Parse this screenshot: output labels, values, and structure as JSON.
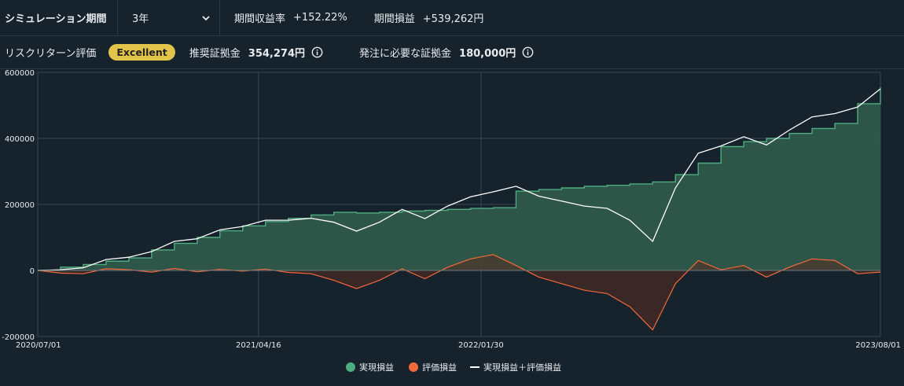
{
  "header": {
    "period_label": "シミュレーション期間",
    "period_value": "3年",
    "return_rate_label": "期間収益率",
    "return_rate_value": "+152.22%",
    "pnl_label": "期間損益",
    "pnl_value": "+539,262円"
  },
  "risk": {
    "label": "リスクリターン評価",
    "badge": "Excellent",
    "recommended_margin_label": "推奨証拠金",
    "recommended_margin_value": "354,274円",
    "required_margin_label": "発注に必要な証拠金",
    "required_margin_value": "180,000円"
  },
  "colors": {
    "realized": "#4fae80",
    "unrealized": "#f26a3c",
    "total": "#ffffff",
    "badge": "#e3c44a"
  },
  "chart_data": {
    "type": "area",
    "x_ticks": [
      "2020/07/01",
      "2021/04/16",
      "2022/01/30",
      "2023/08/01"
    ],
    "y_ticks": [
      "600000",
      "400000",
      "200000",
      "0",
      "-200000"
    ],
    "ylim": [
      -200000,
      600000
    ],
    "grid": true,
    "legend_position": "bottom",
    "x": [
      "2020/07",
      "2020/08",
      "2020/09",
      "2020/10",
      "2020/11",
      "2020/12",
      "2021/01",
      "2021/02",
      "2021/03",
      "2021/04",
      "2021/05",
      "2021/06",
      "2021/07",
      "2021/08",
      "2021/09",
      "2021/10",
      "2021/11",
      "2021/12",
      "2022/01",
      "2022/02",
      "2022/03",
      "2022/04",
      "2022/05",
      "2022/06",
      "2022/07",
      "2022/08",
      "2022/09",
      "2022/10",
      "2022/11",
      "2022/12",
      "2023/01",
      "2023/02",
      "2023/03",
      "2023/04",
      "2023/05",
      "2023/06",
      "2023/07",
      "2023/08"
    ],
    "series": [
      {
        "name": "実現損益",
        "values": [
          0,
          10000,
          18000,
          28000,
          38000,
          62000,
          82000,
          100000,
          120000,
          135000,
          148000,
          158000,
          168000,
          176000,
          174000,
          176000,
          180000,
          182000,
          185000,
          188000,
          190000,
          240000,
          245000,
          250000,
          255000,
          258000,
          262000,
          268000,
          290000,
          325000,
          375000,
          390000,
          400000,
          415000,
          430000,
          445000,
          505000,
          555000
        ]
      },
      {
        "name": "評価損益",
        "values": [
          0,
          -8000,
          -10000,
          5000,
          2000,
          -5000,
          6000,
          -4000,
          3000,
          -2000,
          4000,
          -6000,
          -10000,
          -30000,
          -55000,
          -30000,
          5000,
          -25000,
          10000,
          35000,
          48000,
          15000,
          -20000,
          -40000,
          -60000,
          -70000,
          -110000,
          -180000,
          -40000,
          30000,
          2000,
          15000,
          -20000,
          10000,
          35000,
          30000,
          -10000,
          -5000
        ]
      },
      {
        "name": "実現損益＋評価損益",
        "values": [
          0,
          2000,
          8000,
          33000,
          40000,
          57000,
          88000,
          96000,
          123000,
          133000,
          152000,
          152000,
          158000,
          146000,
          119000,
          146000,
          185000,
          157000,
          195000,
          223000,
          238000,
          255000,
          225000,
          210000,
          195000,
          188000,
          152000,
          88000,
          250000,
          355000,
          377000,
          405000,
          380000,
          425000,
          465000,
          475000,
          495000,
          550000
        ]
      }
    ]
  }
}
